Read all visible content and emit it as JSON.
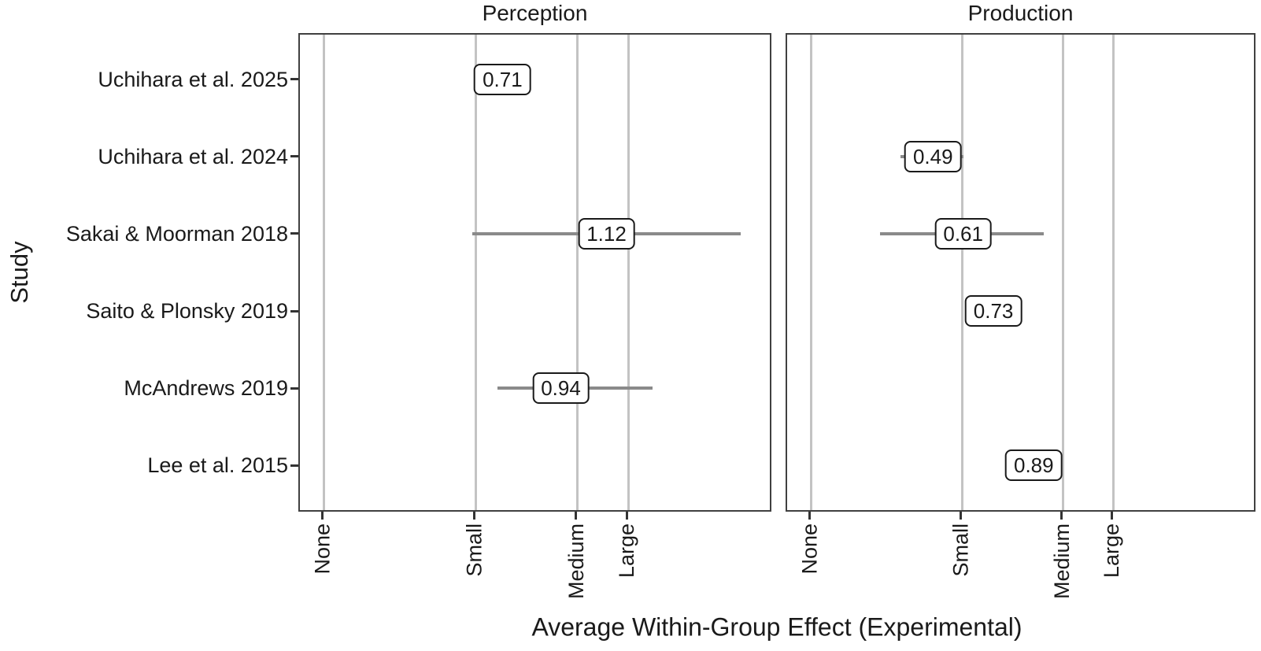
{
  "chart_data": {
    "type": "scatter",
    "variant": "faceted forest / labeled dot plot with horizontal CI error bars",
    "title": "",
    "xlabel": "Average Within-Group Effect (Experimental)",
    "ylabel": "Study",
    "y_categories": [
      "Uchihara et al. 2025",
      "Uchihara et al. 2024",
      "Sakai & Moorman 2018",
      "Saito & Plonsky 2019",
      "McAndrews 2019",
      "Lee et al. 2015"
    ],
    "x_ticks": {
      "labels": [
        "None",
        "Small",
        "Medium",
        "Large"
      ],
      "values": [
        0,
        0.6,
        1.0,
        1.2
      ]
    },
    "xlim": [
      -0.095,
      1.77
    ],
    "grid": "vertical gridlines at x ticks only",
    "legend": "none",
    "facets": [
      {
        "title": "Perception",
        "points": [
          {
            "study": "Uchihara et al. 2025",
            "value": 0.71,
            "label": "0.71",
            "ci": null
          },
          {
            "study": "Sakai & Moorman 2018",
            "value": 1.12,
            "label": "1.12",
            "ci": [
              0.59,
              1.65
            ]
          },
          {
            "study": "McAndrews 2019",
            "value": 0.94,
            "label": "0.94",
            "ci": [
              0.69,
              1.3
            ]
          }
        ]
      },
      {
        "title": "Production",
        "points": [
          {
            "study": "Uchihara et al. 2024",
            "value": 0.49,
            "label": "0.49",
            "ci": [
              0.36,
              0.61
            ]
          },
          {
            "study": "Sakai & Moorman 2018",
            "value": 0.61,
            "label": "0.61",
            "ci": [
              0.28,
              0.93
            ]
          },
          {
            "study": "Saito & Plonsky 2019",
            "value": 0.73,
            "label": "0.73",
            "ci": null
          },
          {
            "study": "Lee et al. 2015",
            "value": 0.89,
            "label": "0.89",
            "ci": null
          }
        ]
      }
    ],
    "colors": {
      "background": "#ffffff",
      "text": "#1a1a1a",
      "panel_border": "#404040",
      "gridline": "#c3c3c3",
      "errorbar": "#8a8a8a",
      "tick": "#333333",
      "label_box_fill": "#ffffff",
      "label_box_border": "#1a1a1a"
    }
  }
}
